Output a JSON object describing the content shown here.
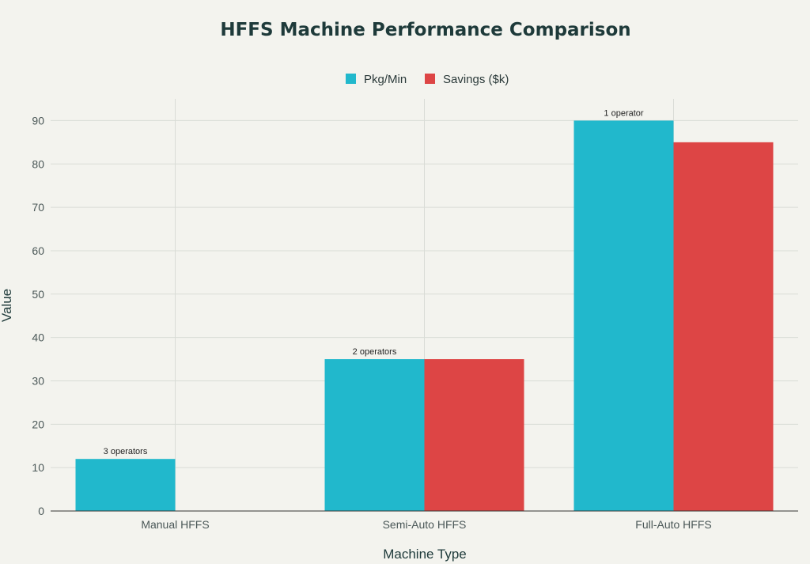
{
  "chart_data": {
    "type": "bar",
    "title": "HFFS Machine Performance Comparison",
    "xlabel": "Machine Type",
    "ylabel": "Value",
    "categories": [
      "Manual HFFS",
      "Semi-Auto HFFS",
      "Full-Auto HFFS"
    ],
    "series": [
      {
        "name": "Pkg/Min",
        "color": "#21b8cc",
        "values": [
          12,
          35,
          90
        ]
      },
      {
        "name": "Savings ($k)",
        "color": "#dd4545",
        "values": [
          0,
          35,
          85
        ]
      }
    ],
    "annotations": [
      "3 operators",
      "2 operators",
      "1 operator"
    ],
    "ylim": [
      0,
      95
    ],
    "yticks": [
      0,
      10,
      20,
      30,
      40,
      50,
      60,
      70,
      80,
      90
    ],
    "grid": true,
    "legend_position": "top-center"
  }
}
